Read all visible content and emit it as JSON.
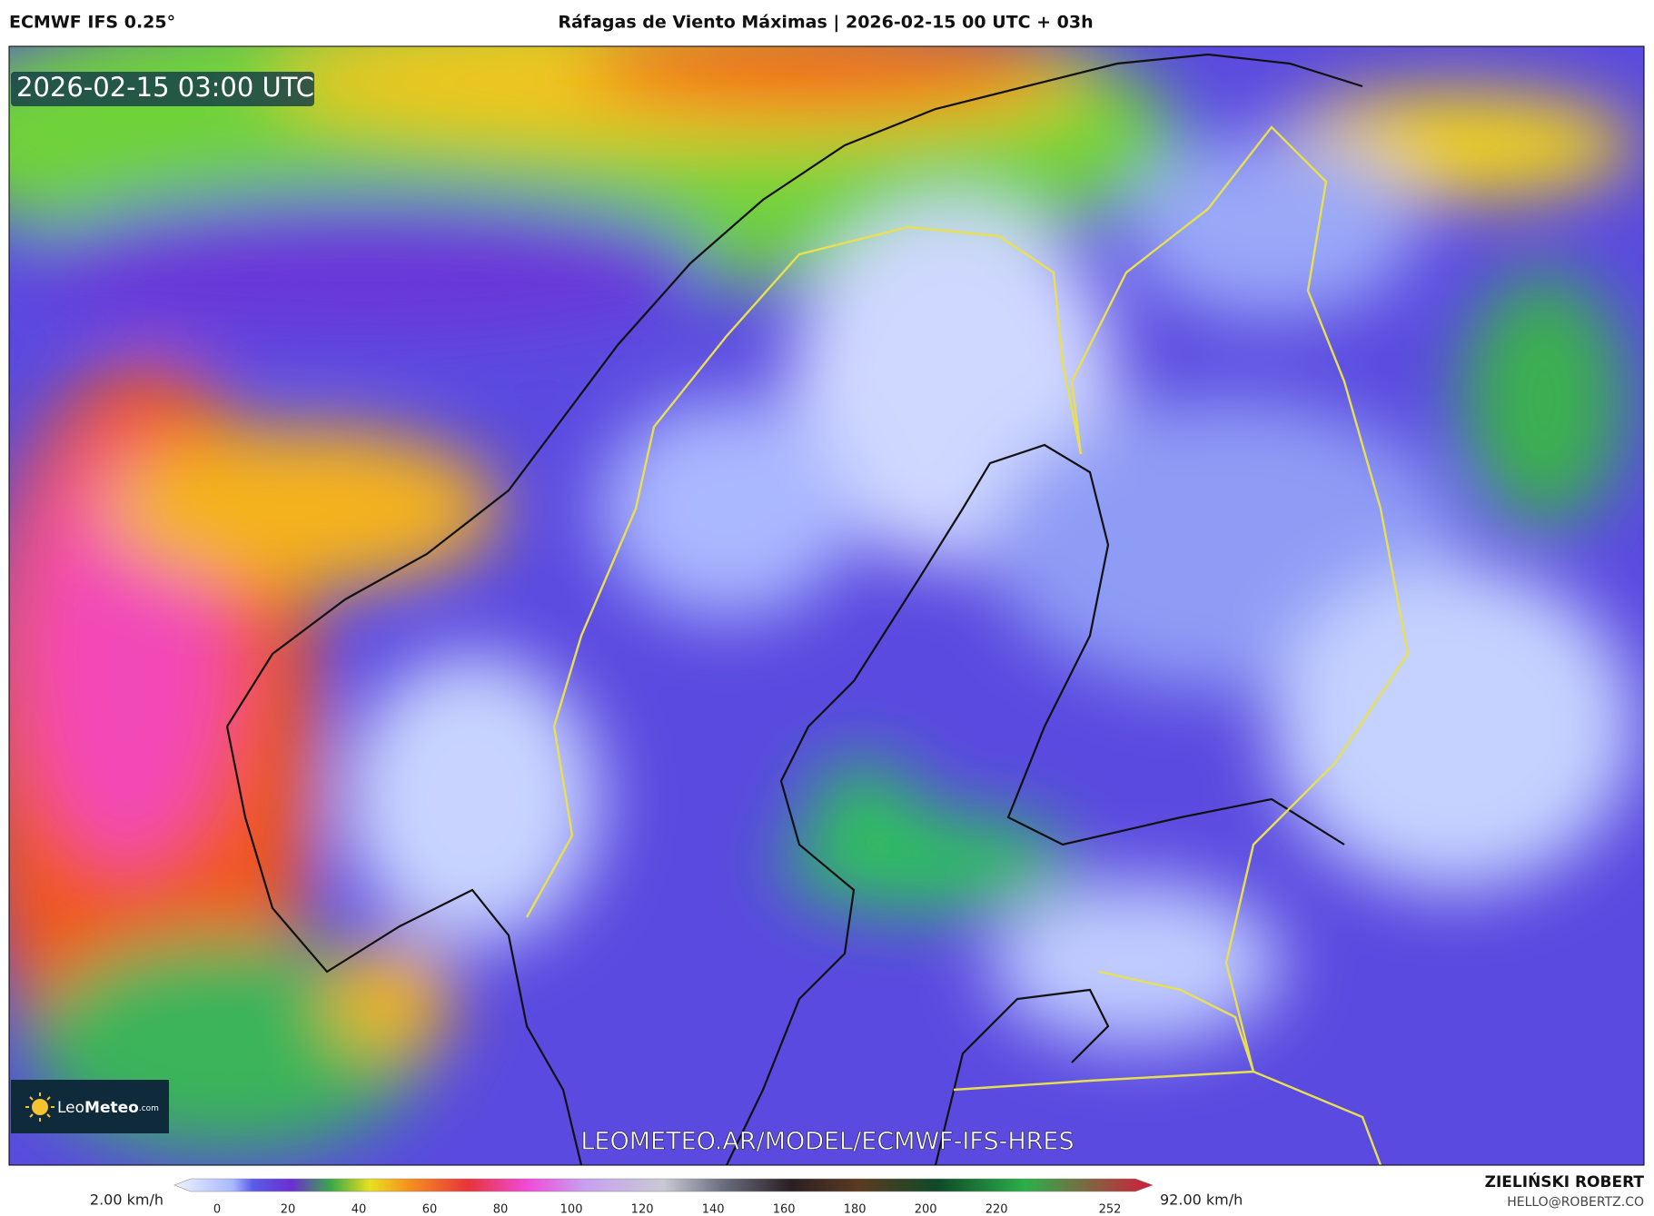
{
  "header": {
    "model": "ECMWF IFS 0.25°",
    "title": "Ráfagas de Viento Máximas | 2026-02-15 00 UTC + 03h"
  },
  "map": {
    "timestamp": "2026-02-15 03:00 UTC",
    "logo": {
      "name": "Leo",
      "name_bold": "Meteo",
      "suffix": ".com"
    },
    "url": "LEOMETEO.AR/MODEL/ECMWF-IFS-HRES"
  },
  "colorbar": {
    "min_label": "2.00 km/h",
    "max_label": "92.00 km/h",
    "ticks": [
      0,
      20,
      40,
      60,
      80,
      100,
      120,
      140,
      160,
      180,
      200,
      220,
      252
    ]
  },
  "author": {
    "name": "ZIELIŃSKI ROBERT",
    "email": "HELLO@ROBERTZ.CO"
  }
}
